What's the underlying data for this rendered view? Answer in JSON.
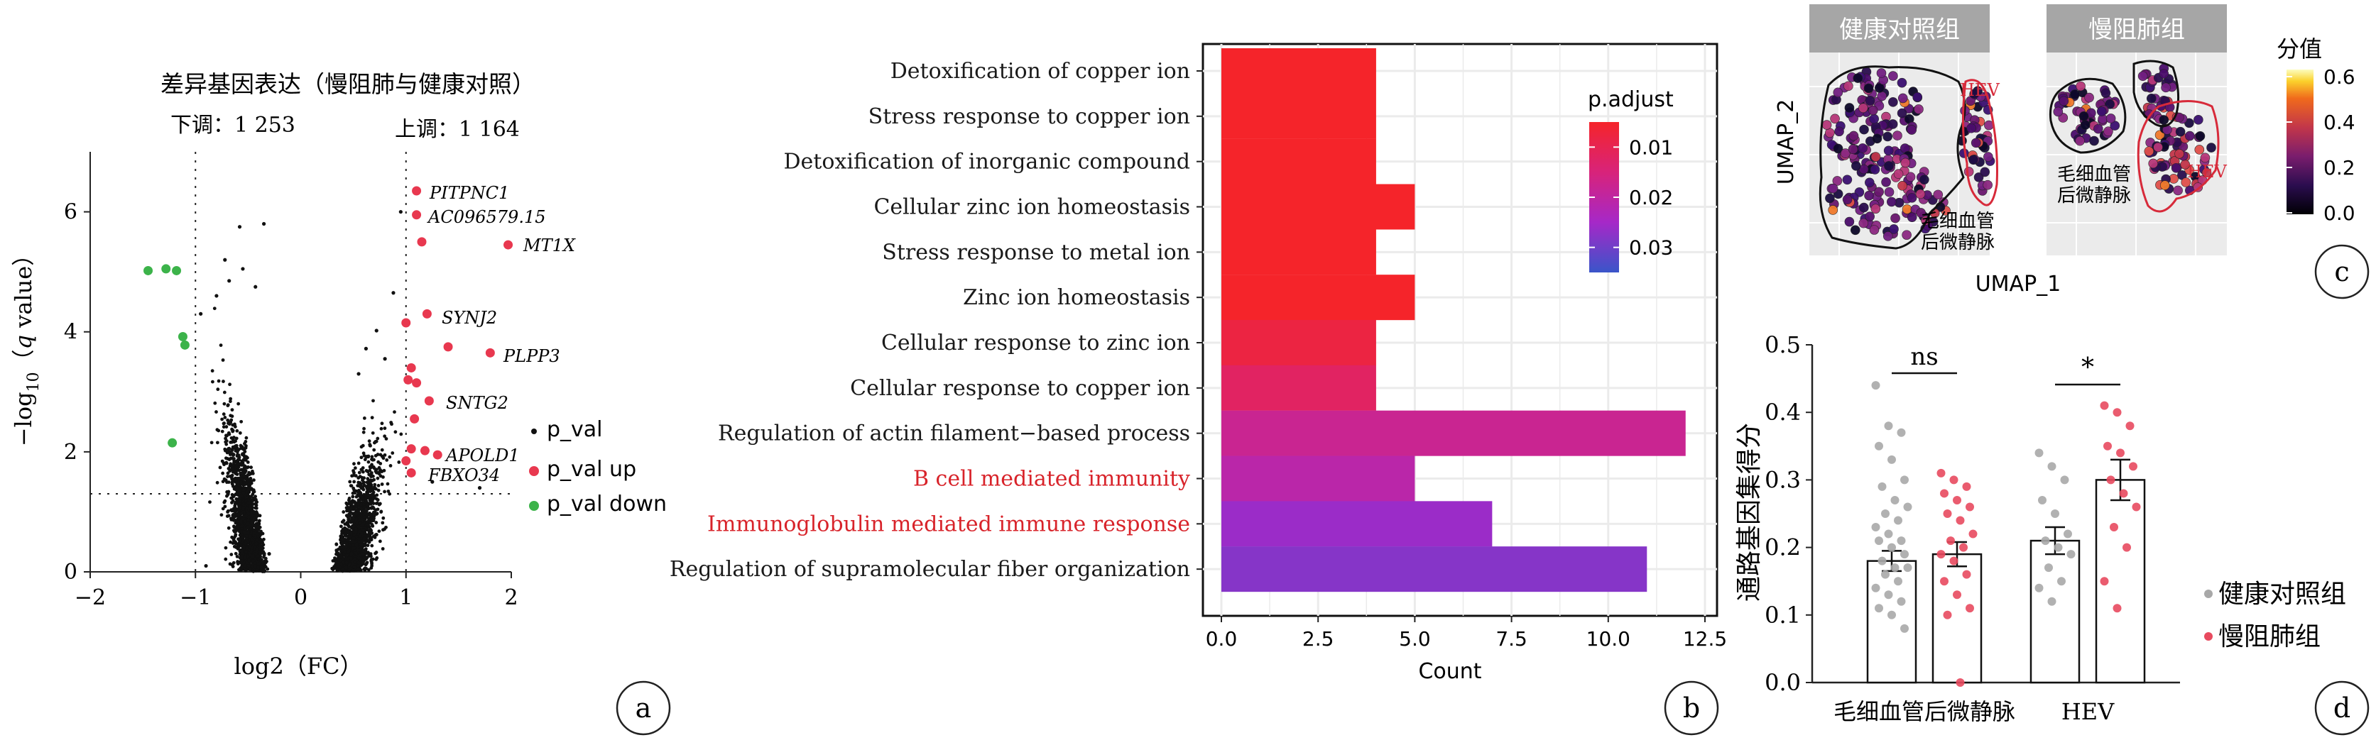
{
  "chart_data": [
    {
      "id": "a",
      "type": "scatter",
      "title": "差异基因表达（慢阻肺与健康对照）",
      "down_label": "下调：1 253",
      "up_label": "上调：1 164",
      "xlabel": "log2（FC）",
      "ylabel_parts": [
        "−log",
        "10",
        "（",
        "q",
        " value）"
      ],
      "xlim": [
        -2,
        2
      ],
      "ylim": [
        0,
        7
      ],
      "xticks": [
        "−2",
        "−1",
        "0",
        "1",
        "2"
      ],
      "yticks": [
        "0",
        "2",
        "4",
        "6"
      ],
      "thresholds": {
        "fc": [
          -1,
          1
        ],
        "y": 1.3
      },
      "legend": [
        "p_val",
        "p_val up",
        "p_val down"
      ],
      "colors": {
        "ns": "#111111",
        "up": "#e8384f",
        "down": "#3cb34a"
      },
      "up_genes": [
        {
          "name": "PITPNC1",
          "x": 1.1,
          "y": 6.35
        },
        {
          "name": "AC096579.15",
          "x": 1.1,
          "y": 5.95
        },
        {
          "name": "MT1X",
          "x": 1.97,
          "y": 5.45
        },
        {
          "name": "SYNJ2",
          "x": 1.2,
          "y": 4.3
        },
        {
          "name": "PLPP3",
          "x": 1.8,
          "y": 3.65
        },
        {
          "name": "SNTG2",
          "x": 1.22,
          "y": 2.85
        },
        {
          "name": "APOLD1",
          "x": 1.3,
          "y": 1.95
        },
        {
          "name": "FBXO34",
          "x": 1.05,
          "y": 1.65
        }
      ],
      "up_points_unlabeled": [
        [
          1.15,
          5.5
        ],
        [
          1.0,
          4.15
        ],
        [
          1.4,
          3.75
        ],
        [
          1.05,
          3.4
        ],
        [
          1.02,
          3.2
        ],
        [
          1.1,
          3.15
        ],
        [
          1.08,
          2.55
        ],
        [
          1.05,
          2.05
        ],
        [
          1.18,
          2.02
        ],
        [
          1.0,
          1.85
        ]
      ],
      "down_points": [
        [
          -1.45,
          5.02
        ],
        [
          -1.28,
          5.05
        ],
        [
          -1.18,
          5.02
        ],
        [
          -1.12,
          3.92
        ],
        [
          -1.1,
          3.78
        ],
        [
          -1.22,
          2.15
        ]
      ],
      "ns_sparse": [
        [
          -0.35,
          5.8
        ],
        [
          -0.58,
          5.75
        ],
        [
          -0.72,
          5.2
        ],
        [
          -0.55,
          5.05
        ],
        [
          -0.8,
          4.6
        ],
        [
          -0.95,
          4.3
        ],
        [
          -0.68,
          4.85
        ],
        [
          -0.43,
          4.75
        ],
        [
          0.95,
          6.0
        ],
        [
          0.88,
          4.65
        ],
        [
          0.72,
          4.02
        ],
        [
          0.62,
          3.72
        ],
        [
          0.8,
          3.55
        ],
        [
          0.55,
          3.3
        ],
        [
          1.25,
          1.5
        ],
        [
          1.7,
          1.4
        ],
        [
          -0.3,
          0.3
        ],
        [
          -0.9,
          0.1
        ],
        [
          -0.65,
          0.12
        ]
      ]
    },
    {
      "id": "b",
      "type": "bar",
      "xlabel": "Count",
      "xlim": [
        0,
        12.5
      ],
      "xticks": [
        "0.0",
        "2.5",
        "5.0",
        "7.5",
        "10.0",
        "12.5"
      ],
      "categories": [
        "Detoxification of copper ion",
        "Stress response to copper ion",
        "Detoxification of inorganic compound",
        "Cellular zinc ion homeostasis",
        "Stress response to metal ion",
        "Zinc ion homeostasis",
        "Cellular response to zinc ion",
        "Cellular response to copper ion",
        "Regulation of actin filament−based process",
        "B cell mediated immunity",
        "Immunoglobulin mediated immune response",
        "Regulation of supramolecular fiber organization"
      ],
      "highlighted": [
        9,
        10
      ],
      "highlight_color": "#d8232a",
      "values": [
        4,
        4,
        4,
        5,
        4,
        5,
        4,
        4,
        12,
        5,
        7,
        11
      ],
      "p_adjust": [
        0.003,
        0.003,
        0.003,
        0.004,
        0.004,
        0.005,
        0.008,
        0.012,
        0.018,
        0.021,
        0.026,
        0.028
      ],
      "legend_title": "p.adjust",
      "legend_ticks": [
        "0.01",
        "0.02",
        "0.03"
      ],
      "legend_range": [
        0.005,
        0.035
      ],
      "colors": [
        "#f5242a",
        "#d8237a",
        "#a628c8",
        "#3a55c9"
      ]
    },
    {
      "id": "c",
      "type": "scatter",
      "panels": [
        "健康对照组",
        "慢阻肺组"
      ],
      "xlabel": "UMAP_1",
      "ylabel": "UMAP_2",
      "hev_label": "HEV",
      "cap_label_lines": [
        "毛细血管",
        "后微静脉"
      ],
      "legend_title": "分值",
      "legend_ticks": [
        "0.6",
        "0.4",
        "0.2",
        "0.0"
      ],
      "score_colors": [
        "#000000",
        "#2b0d4f",
        "#7a1d6d",
        "#c2364a",
        "#f06a1c",
        "#fbd12c",
        "#fcfdbf"
      ]
    },
    {
      "id": "d",
      "type": "bar",
      "ylabel": "通路基因集得分",
      "ylim": [
        0,
        0.5
      ],
      "yticks": [
        "0.0",
        "0.1",
        "0.2",
        "0.3",
        "0.4",
        "0.5"
      ],
      "categories": [
        "毛细血管后微静脉",
        "HEV"
      ],
      "series": [
        {
          "name": "健康对照组",
          "color": "#a8a8a8",
          "values": [
            0.18,
            0.21
          ],
          "err": [
            0.015,
            0.02
          ],
          "points": [
            [
              0.44,
              0.38,
              0.37,
              0.35,
              0.33,
              0.3,
              0.29,
              0.27,
              0.26,
              0.25,
              0.24,
              0.23,
              0.22,
              0.21,
              0.21,
              0.2,
              0.19,
              0.18,
              0.17,
              0.17,
              0.16,
              0.15,
              0.14,
              0.13,
              0.12,
              0.11,
              0.1,
              0.08
            ],
            [
              0.34,
              0.32,
              0.3,
              0.27,
              0.25,
              0.22,
              0.21,
              0.2,
              0.19,
              0.17,
              0.15,
              0.14,
              0.12
            ]
          ]
        },
        {
          "name": "慢阻肺组",
          "color": "#e84a5f",
          "values": [
            0.19,
            0.3
          ],
          "err": [
            0.018,
            0.03
          ],
          "points": [
            [
              0.31,
              0.3,
              0.29,
              0.28,
              0.27,
              0.26,
              0.25,
              0.24,
              0.22,
              0.21,
              0.2,
              0.19,
              0.18,
              0.16,
              0.15,
              0.13,
              0.11,
              0.1,
              0.0
            ],
            [
              0.41,
              0.4,
              0.38,
              0.35,
              0.34,
              0.32,
              0.3,
              0.28,
              0.26,
              0.23,
              0.2,
              0.15,
              0.11
            ]
          ]
        }
      ],
      "significance": [
        "ns",
        "*"
      ]
    }
  ],
  "panel_letters": [
    "a",
    "b",
    "c",
    "d"
  ]
}
